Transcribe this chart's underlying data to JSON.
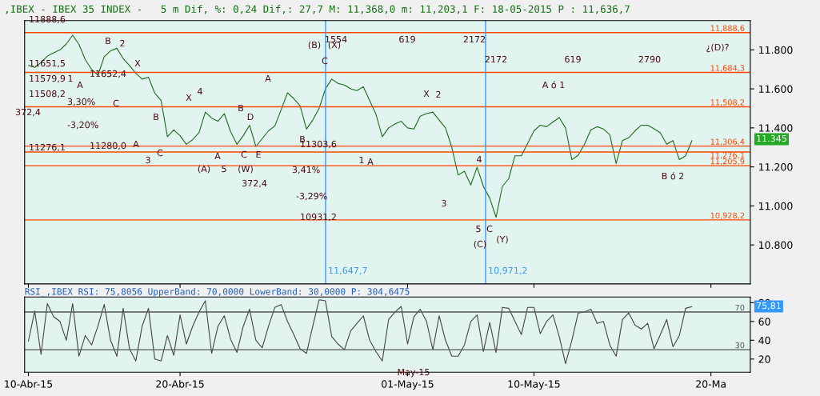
{
  "chart_data": [
    {
      "type": "line",
      "title": ",IBEX - IBEX 35 INDEX -   5 m Dif, %: 0,24 Dif,: 27,7 M: 11,368,0 m: 11,203,1 F: 18-05-2015 P : 11,636,7",
      "ylim": [
        10600,
        11950
      ],
      "yticks": [
        {
          "value": 10800,
          "label": "10.800"
        },
        {
          "value": 11000,
          "label": "11.000"
        },
        {
          "value": 11200,
          "label": "11.200"
        },
        {
          "value": 11400,
          "label": "11.400"
        },
        {
          "value": 11600,
          "label": "11.600"
        },
        {
          "value": 11800,
          "label": "11.800"
        }
      ],
      "tick_labels": "y",
      "series": [
        {
          "color": "#1e6b1e",
          "values": [
            11720,
            11710,
            11735,
            11768,
            11785,
            11800,
            11830,
            11875,
            11828,
            11750,
            11700,
            11670,
            11765,
            11795,
            11808,
            11755,
            11720,
            11680,
            11650,
            11660,
            11578,
            11540,
            11355,
            11390,
            11360,
            11316,
            11340,
            11375,
            11481,
            11450,
            11434,
            11473,
            11380,
            11316,
            11360,
            11414,
            11304,
            11345,
            11385,
            11410,
            11493,
            11580,
            11550,
            11513,
            11394,
            11440,
            11500,
            11600,
            11650,
            11628,
            11620,
            11600,
            11591,
            11611,
            11540,
            11470,
            11355,
            11400,
            11420,
            11434,
            11400,
            11394,
            11460,
            11473,
            11481,
            11440,
            11400,
            11300,
            11158,
            11178,
            11107,
            11198,
            11100,
            11040,
            10942,
            11100,
            11139,
            11257,
            11257,
            11320,
            11385,
            11414,
            11406,
            11430,
            11453,
            11400,
            11237,
            11260,
            11316,
            11390,
            11406,
            11394,
            11365,
            11217,
            11335,
            11350,
            11385,
            11414,
            11414,
            11395,
            11375,
            11316,
            11335,
            11237,
            11257,
            11335,
            null,
            null,
            null
          ]
        }
      ],
      "ref_lines": [
        {
          "axis": "y",
          "value": 11888.6,
          "label": "11,888,6",
          "color": "#ff4500"
        },
        {
          "axis": "y",
          "value": 11684.3,
          "label": "11,684,3",
          "color": "#ff4500"
        },
        {
          "axis": "y",
          "value": 11508.2,
          "label": "11,508,2",
          "color": "#ff4500"
        },
        {
          "axis": "y",
          "value": 11306.4,
          "label": "11,306,4",
          "color": "#ff4500"
        },
        {
          "axis": "y",
          "value": 11276.1,
          "label": "11,276,1",
          "color": "#ff4500"
        },
        {
          "axis": "y",
          "value": 11205.9,
          "label": "11,205,9",
          "color": "#ff4500"
        },
        {
          "axis": "y",
          "value": 10928.2,
          "label": "10,928,2",
          "color": "#ff4500"
        }
      ],
      "annotations": [
        "B",
        "2",
        "X",
        "A",
        "C",
        "X",
        "4",
        "B",
        "A",
        "C",
        "3",
        "A",
        "(A)",
        "5",
        "(W)",
        "B",
        "D",
        "C",
        "E",
        "A",
        "B",
        "(B)",
        "(X)",
        "C",
        "1",
        "A",
        "X",
        "2",
        "4",
        "3",
        "5",
        "C",
        "(C)",
        "(Y)",
        "A ó 1",
        "B ó 2",
        "¿(D)?",
        "1554",
        "619",
        "2172",
        "2172",
        "619",
        "2790",
        "11652,4",
        "11280,0",
        "3,30%",
        "-3,20%",
        "372,4",
        "11303,6",
        "10931,2",
        "3,41%",
        "-3,29%",
        "372,4",
        "11651,5",
        "11579,9",
        "11508,2",
        "11276,1",
        "1",
        "11888,6",
        "11.345",
        "11,647,7",
        "10,971,2"
      ]
    },
    {
      "type": "line",
      "title": "RSI_,IBEX RSI: 75,8056 UpperBand: 70,0000 LowerBand: 30,0000 P: 304,6475",
      "categories": [
        "10-Abr-15",
        null,
        null,
        null,
        null,
        null,
        null,
        null,
        null,
        null,
        null,
        null,
        null,
        null,
        null,
        null,
        null,
        null,
        null,
        null,
        null,
        null,
        null,
        null,
        "20-Abr-15",
        null,
        null,
        null,
        null,
        null,
        null,
        null,
        null,
        null,
        null,
        null,
        null,
        null,
        null,
        null,
        null,
        null,
        null,
        null,
        null,
        null,
        null,
        null,
        null,
        null,
        null,
        null,
        null,
        null,
        null,
        null,
        null,
        null,
        null,
        null,
        "01-May-15",
        null,
        null,
        null,
        null,
        null,
        null,
        null,
        null,
        null,
        null,
        null,
        null,
        null,
        null,
        null,
        null,
        null,
        null,
        null,
        "10-May-15",
        null,
        null,
        null,
        null,
        null,
        null,
        null,
        null,
        null,
        null,
        null,
        null,
        null,
        null,
        null,
        null,
        null,
        null,
        null,
        null,
        null,
        null,
        null,
        null,
        null,
        null,
        null,
        "20-Ma"
      ],
      "ylim": [
        6,
        86
      ],
      "yticks": [
        20,
        40,
        60,
        80
      ],
      "series": [
        {
          "color": "#444444",
          "values": [
            39,
            71,
            25,
            79,
            65,
            60,
            40,
            79,
            23,
            45,
            35,
            55,
            78,
            40,
            23,
            74,
            31,
            18,
            55,
            74,
            20,
            18,
            45,
            24,
            67,
            36,
            55,
            70,
            82,
            26,
            55,
            66,
            41,
            27,
            55,
            73,
            40,
            32,
            55,
            75,
            78,
            60,
            46,
            31,
            26,
            55,
            83,
            82,
            44,
            36,
            30,
            50,
            58,
            66,
            40,
            28,
            18,
            62,
            70,
            76,
            36,
            65,
            73,
            60,
            30,
            66,
            40,
            23,
            23,
            35,
            60,
            67,
            28,
            59,
            27,
            75,
            74,
            60,
            46,
            75,
            75,
            47,
            60,
            67,
            44,
            15,
            40,
            69,
            70,
            73,
            58,
            60,
            35,
            23,
            62,
            69,
            56,
            52,
            58,
            31,
            46,
            62,
            33,
            45,
            74,
            75.81,
            null,
            null,
            null
          ]
        }
      ],
      "ref_lines": [
        {
          "axis": "y",
          "value": 70,
          "label": "70",
          "color": "#555555"
        },
        {
          "axis": "y",
          "value": 30,
          "label": "30",
          "color": "#555555"
        }
      ],
      "annotations": [
        "75,81",
        "May-15"
      ]
    }
  ]
}
